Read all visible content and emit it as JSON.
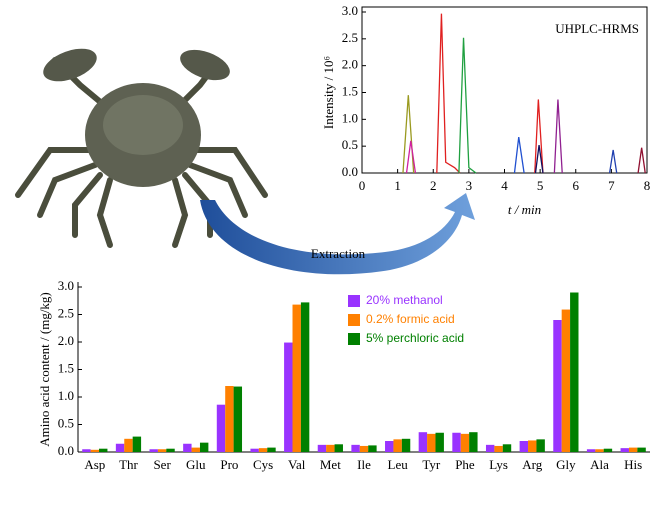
{
  "chart_data": [
    {
      "type": "line",
      "annotation": "UHPLC-HRMS",
      "x_label": "t / min",
      "y_label": "Intensity / 10⁶",
      "xlim": [
        0,
        8
      ],
      "xticks": [
        0,
        1,
        2,
        3,
        4,
        5,
        6,
        7,
        8
      ],
      "ylim": [
        0,
        3.0
      ],
      "yticks": [
        {
          "value": 0,
          "label": "0.0"
        },
        0.5,
        {
          "value": 1,
          "label": "1.0"
        },
        1.5,
        {
          "value": 2,
          "label": "2.0"
        },
        2.5,
        {
          "value": 3,
          "label": "3.0"
        }
      ],
      "series": [
        {
          "color": "#9a9a20",
          "x": [
            1.15,
            1.3,
            1.45
          ],
          "values": [
            0,
            1.45,
            0
          ]
        },
        {
          "color": "#d020a0",
          "x": [
            1.25,
            1.37,
            1.5
          ],
          "values": [
            0,
            0.6,
            0
          ]
        },
        {
          "color": "#e02020",
          "x": [
            2.1,
            2.23,
            2.35,
            2.6,
            2.75
          ],
          "values": [
            0,
            2.97,
            0.2,
            0.1,
            0
          ]
        },
        {
          "color": "#20a040",
          "x": [
            2.72,
            2.85,
            3.0,
            3.2
          ],
          "values": [
            0,
            2.52,
            0.1,
            0
          ]
        },
        {
          "color": "#2050d0",
          "x": [
            4.28,
            4.4,
            4.55
          ],
          "values": [
            0,
            0.67,
            0
          ]
        },
        {
          "color": "#e02020",
          "x": [
            4.85,
            4.95,
            5.08
          ],
          "values": [
            0,
            1.37,
            0
          ]
        },
        {
          "color": "#101060",
          "x": [
            4.87,
            4.97,
            5.08
          ],
          "values": [
            0,
            0.52,
            0
          ]
        },
        {
          "color": "#902090",
          "x": [
            5.4,
            5.5,
            5.62
          ],
          "values": [
            0,
            1.37,
            0
          ]
        },
        {
          "color": "#2040b0",
          "x": [
            6.95,
            7.05,
            7.15
          ],
          "values": [
            0,
            0.43,
            0
          ]
        },
        {
          "color": "#901030",
          "x": [
            7.75,
            7.85,
            7.95
          ],
          "values": [
            0,
            0.47,
            0
          ]
        }
      ]
    },
    {
      "type": "bar",
      "y_label": "Amino acid content / (mg/kg)",
      "categories": [
        "Asp",
        "Thr",
        "Ser",
        "Glu",
        "Pro",
        "Cys",
        "Val",
        "Met",
        "Ile",
        "Leu",
        "Tyr",
        "Phe",
        "Lys",
        "Arg",
        "Gly",
        "Ala",
        "His"
      ],
      "ylim": [
        0,
        3.0
      ],
      "yticks": [
        {
          "value": 0,
          "label": "0.0"
        },
        0.5,
        {
          "value": 1,
          "label": "1.0"
        },
        1.5,
        {
          "value": 2,
          "label": "2.0"
        },
        2.5,
        {
          "value": 3,
          "label": "3.0"
        }
      ],
      "series": [
        {
          "name": "20% methanol",
          "color": "#9933ff",
          "values": [
            0.05,
            0.15,
            0.05,
            0.15,
            0.86,
            0.06,
            1.99,
            0.13,
            0.13,
            0.2,
            0.36,
            0.35,
            0.13,
            0.2,
            2.4,
            0.05,
            0.07
          ]
        },
        {
          "name": "0.2% formic acid",
          "color": "#ff8000",
          "values": [
            0.04,
            0.24,
            0.05,
            0.08,
            1.2,
            0.07,
            2.68,
            0.13,
            0.11,
            0.23,
            0.33,
            0.33,
            0.11,
            0.21,
            2.59,
            0.05,
            0.08
          ]
        },
        {
          "name": "5% perchloric acid",
          "color": "#008000",
          "values": [
            0.06,
            0.28,
            0.06,
            0.17,
            1.19,
            0.08,
            2.72,
            0.14,
            0.12,
            0.24,
            0.35,
            0.36,
            0.14,
            0.23,
            2.9,
            0.06,
            0.08
          ]
        }
      ]
    }
  ],
  "diagram": {
    "arrow_label": "Extraction"
  }
}
